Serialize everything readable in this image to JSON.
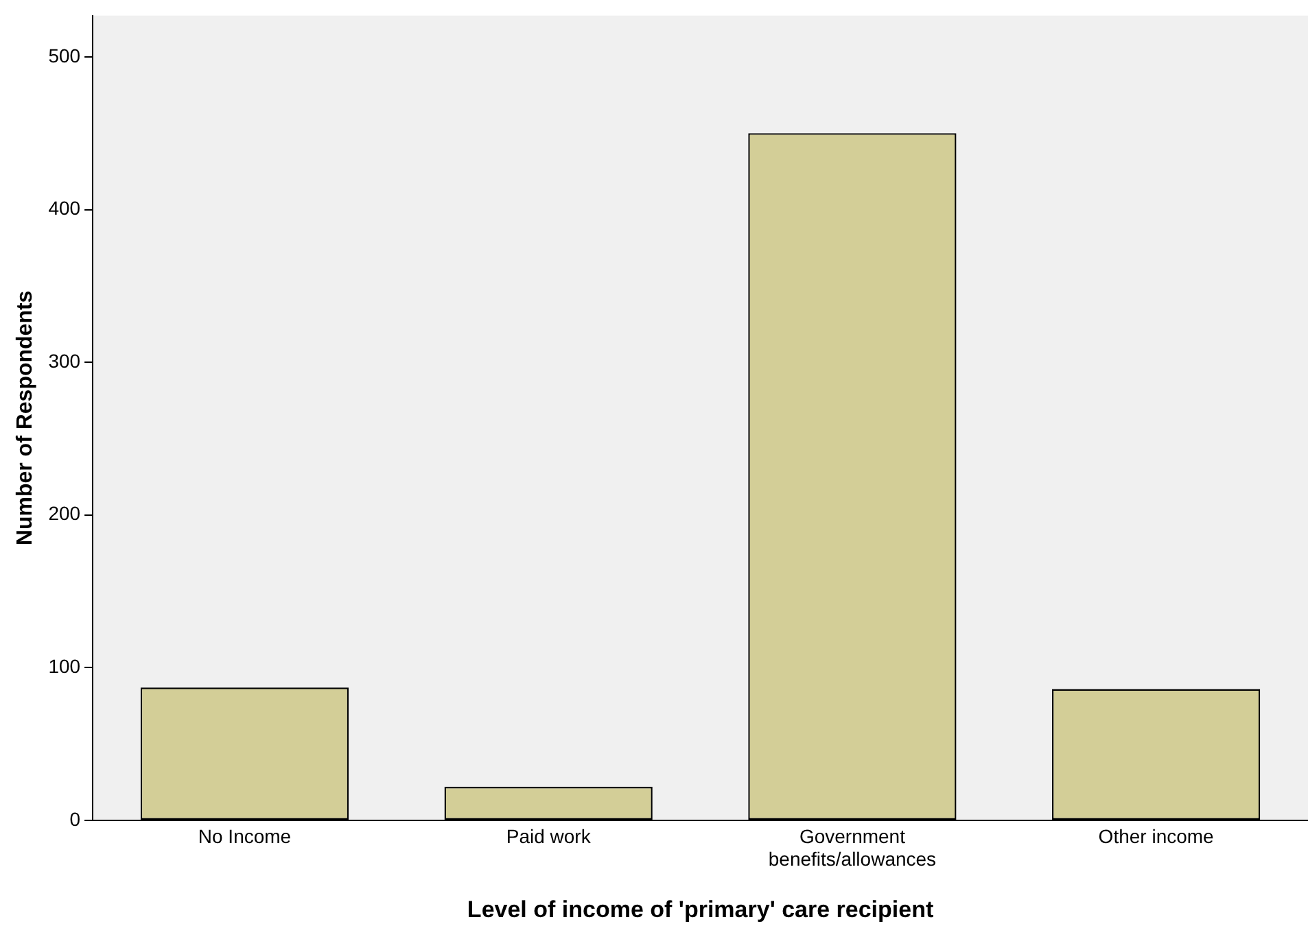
{
  "chart_data": {
    "type": "bar",
    "xlabel": "Level of income of 'primary' care recipient",
    "ylabel": "Number of Respondents",
    "categories": [
      "No Income",
      "Paid work",
      "Government benefits/allowances",
      "Other income"
    ],
    "values": [
      87,
      22,
      450,
      86
    ],
    "color": "#d3ce97",
    "ylim": [
      0,
      527
    ],
    "yticks": [
      0,
      100,
      200,
      300,
      400,
      500
    ],
    "grid": false,
    "legend": false
  }
}
